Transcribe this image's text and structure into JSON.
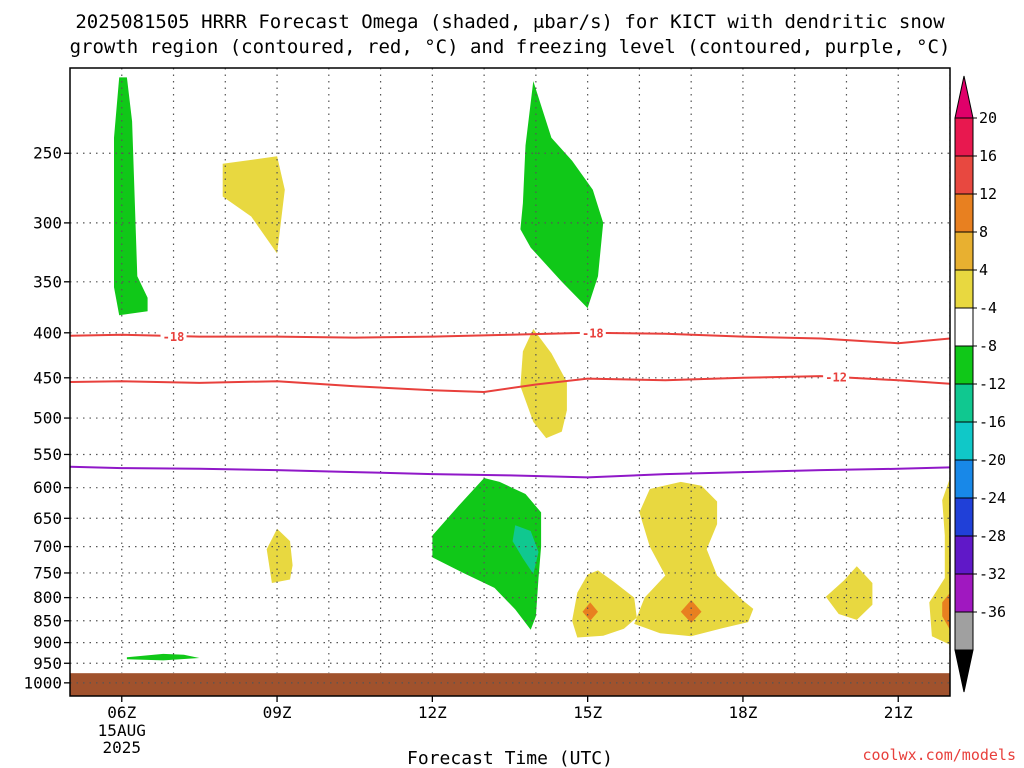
{
  "title_line1": "2025081505 HRRR Forecast Omega (shaded, μbar/s) for KICT with dendritic snow",
  "title_line2": "growth region (contoured, red, °C) and freezing level (contoured, purple, °C)",
  "credit": "coolwx.com/models",
  "chart_data": {
    "type": "contour",
    "title": "2025081505 HRRR Forecast Omega (shaded, μbar/s) for KICT with dendritic snow growth region (contoured, red, °C) and freezing level (contoured, purple, °C)",
    "xlabel": "Forecast Time (UTC)",
    "ylabel": "",
    "x_ticks": [
      {
        "label": "06Z",
        "sub": [
          "15AUG",
          "2025"
        ],
        "hour": 6
      },
      {
        "label": "09Z",
        "hour": 9
      },
      {
        "label": "12Z",
        "hour": 12
      },
      {
        "label": "15Z",
        "hour": 15
      },
      {
        "label": "18Z",
        "hour": 18
      },
      {
        "label": "21Z",
        "hour": 21
      }
    ],
    "xlim": [
      5.0,
      22.0
    ],
    "y_ticks": [
      250,
      300,
      350,
      400,
      450,
      500,
      550,
      600,
      650,
      700,
      750,
      800,
      850,
      900,
      950,
      1000
    ],
    "ylim": [
      200,
      1035
    ],
    "y_scale": "log (pressure, hPa, reversed)",
    "grid": true,
    "colorbar": {
      "labels": [
        "20",
        "16",
        "12",
        "8",
        "4",
        "-4",
        "-8",
        "-12",
        "-16",
        "-20",
        "-24",
        "-28",
        "-32",
        "-36"
      ],
      "colors": [
        "#e8184f",
        "#e84840",
        "#e88020",
        "#e8b030",
        "#e8d840",
        "#ffffff",
        "#10c818",
        "#10c890",
        "#10c8c8",
        "#1888e8",
        "#2040d8",
        "#6018c8",
        "#a018c0",
        "#a0a0a0"
      ],
      "top_arrow": "#e0006a",
      "bottom_arrow": "#000000"
    },
    "contours": [
      {
        "name": "-18",
        "color": "#e8403c",
        "points": [
          [
            5.0,
            403
          ],
          [
            6.0,
            402
          ],
          [
            7.5,
            404
          ],
          [
            9.0,
            404
          ],
          [
            10.5,
            405
          ],
          [
            12.0,
            404
          ],
          [
            13.5,
            402
          ],
          [
            15.0,
            400
          ],
          [
            16.5,
            401
          ],
          [
            18.0,
            404
          ],
          [
            19.5,
            406
          ],
          [
            21.0,
            411
          ],
          [
            22.0,
            406
          ]
        ],
        "label_at": [
          [
            7.0,
            404
          ],
          [
            15.1,
            400
          ]
        ]
      },
      {
        "name": "-12",
        "color": "#e8403c",
        "points": [
          [
            5.0,
            455
          ],
          [
            6.0,
            454
          ],
          [
            7.5,
            456
          ],
          [
            9.0,
            454
          ],
          [
            10.5,
            460
          ],
          [
            12.0,
            465
          ],
          [
            13.0,
            467
          ],
          [
            14.0,
            458
          ],
          [
            15.0,
            451
          ],
          [
            16.5,
            453
          ],
          [
            18.0,
            450
          ],
          [
            19.5,
            448
          ],
          [
            21.0,
            453
          ],
          [
            22.0,
            457
          ]
        ],
        "label_at": [
          [
            19.8,
            449
          ]
        ]
      },
      {
        "name": "0",
        "color": "#9018c8",
        "points": [
          [
            5.0,
            568
          ],
          [
            6.0,
            570
          ],
          [
            7.5,
            571
          ],
          [
            9.0,
            573
          ],
          [
            10.5,
            576
          ],
          [
            12.0,
            579
          ],
          [
            13.5,
            581
          ],
          [
            15.0,
            584
          ],
          [
            16.5,
            579
          ],
          [
            18.0,
            576
          ],
          [
            19.5,
            573
          ],
          [
            21.0,
            571
          ],
          [
            22.0,
            569
          ]
        ]
      }
    ],
    "omega_regions": [
      {
        "color": "#10c818",
        "value_range": "-8 to -4",
        "points": [
          [
            5.95,
            205
          ],
          [
            6.1,
            205
          ],
          [
            6.2,
            230
          ],
          [
            6.3,
            345
          ],
          [
            6.5,
            365
          ],
          [
            6.5,
            378
          ],
          [
            5.95,
            382
          ],
          [
            5.85,
            355
          ],
          [
            5.85,
            240
          ]
        ]
      },
      {
        "color": "#e8d840",
        "value_range": "4 to 8",
        "points": [
          [
            7.95,
            257
          ],
          [
            9.0,
            252
          ],
          [
            9.15,
            275
          ],
          [
            9.0,
            325
          ],
          [
            8.5,
            295
          ],
          [
            7.95,
            280
          ]
        ]
      },
      {
        "color": "#10c818",
        "value_range": "-8 to -4",
        "points": [
          [
            13.95,
            207
          ],
          [
            14.3,
            240
          ],
          [
            14.7,
            255
          ],
          [
            15.1,
            275
          ],
          [
            15.3,
            300
          ],
          [
            15.2,
            345
          ],
          [
            15.0,
            375
          ],
          [
            14.5,
            350
          ],
          [
            13.9,
            320
          ],
          [
            13.7,
            305
          ],
          [
            13.75,
            285
          ],
          [
            13.8,
            245
          ]
        ]
      },
      {
        "color": "#e8d840",
        "value_range": "4 to 8",
        "points": [
          [
            13.95,
            396
          ],
          [
            14.3,
            422
          ],
          [
            14.6,
            455
          ],
          [
            14.6,
            490
          ],
          [
            14.5,
            518
          ],
          [
            14.2,
            527
          ],
          [
            13.95,
            505
          ],
          [
            13.7,
            460
          ],
          [
            13.75,
            420
          ]
        ]
      },
      {
        "color": "#10c818",
        "value_range": "-8 to -4",
        "points": [
          [
            13.0,
            585
          ],
          [
            13.3,
            591
          ],
          [
            13.8,
            610
          ],
          [
            14.1,
            640
          ],
          [
            14.1,
            700
          ],
          [
            14.05,
            760
          ],
          [
            14.0,
            840
          ],
          [
            13.9,
            870
          ],
          [
            13.6,
            825
          ],
          [
            13.2,
            780
          ],
          [
            12.6,
            750
          ],
          [
            12.0,
            720
          ],
          [
            12.0,
            680
          ],
          [
            12.5,
            630
          ]
        ]
      },
      {
        "color": "#10c890",
        "value_range": "-12 to -8",
        "points": [
          [
            13.6,
            662
          ],
          [
            13.9,
            672
          ],
          [
            14.05,
            710
          ],
          [
            13.95,
            752
          ],
          [
            13.75,
            722
          ],
          [
            13.55,
            690
          ]
        ]
      },
      {
        "color": "#e8d840",
        "value_range": "4 to 8",
        "points": [
          [
            9.0,
            668
          ],
          [
            9.25,
            690
          ],
          [
            9.3,
            735
          ],
          [
            9.25,
            763
          ],
          [
            8.9,
            770
          ],
          [
            8.8,
            705
          ]
        ]
      },
      {
        "color": "#e8d840",
        "value_range": "4 to 8",
        "points": [
          [
            15.2,
            745
          ],
          [
            15.5,
            767
          ],
          [
            15.9,
            800
          ],
          [
            15.95,
            843
          ],
          [
            15.7,
            868
          ],
          [
            15.3,
            884
          ],
          [
            14.8,
            888
          ],
          [
            14.7,
            850
          ],
          [
            14.8,
            790
          ],
          [
            15.0,
            753
          ]
        ]
      },
      {
        "color": "#e8d840",
        "value_range": "4 to 8",
        "points": [
          [
            16.2,
            602
          ],
          [
            16.8,
            591
          ],
          [
            17.2,
            597
          ],
          [
            17.5,
            622
          ],
          [
            17.5,
            660
          ],
          [
            17.3,
            705
          ],
          [
            17.5,
            755
          ],
          [
            18.0,
            806
          ],
          [
            18.2,
            824
          ],
          [
            18.1,
            853
          ],
          [
            17.6,
            867
          ],
          [
            17.0,
            885
          ],
          [
            16.4,
            878
          ],
          [
            15.9,
            857
          ],
          [
            16.1,
            800
          ],
          [
            16.5,
            755
          ],
          [
            16.2,
            700
          ],
          [
            16.0,
            640
          ]
        ]
      },
      {
        "color": "#e88020",
        "value_range": "8 to 12",
        "points": [
          [
            15.05,
            810
          ],
          [
            15.2,
            830
          ],
          [
            15.05,
            850
          ],
          [
            14.9,
            830
          ]
        ]
      },
      {
        "color": "#e88020",
        "value_range": "8 to 12",
        "points": [
          [
            17.0,
            805
          ],
          [
            17.2,
            830
          ],
          [
            17.0,
            855
          ],
          [
            16.8,
            830
          ]
        ]
      },
      {
        "color": "#e8d840",
        "value_range": "4 to 8",
        "points": [
          [
            20.2,
            737
          ],
          [
            20.5,
            770
          ],
          [
            20.5,
            815
          ],
          [
            20.2,
            848
          ],
          [
            19.85,
            835
          ],
          [
            19.6,
            798
          ],
          [
            19.95,
            765
          ]
        ]
      },
      {
        "color": "#e8d840",
        "value_range": "4 to 8",
        "points": [
          [
            22.0,
            585
          ],
          [
            22.0,
            905
          ],
          [
            21.65,
            885
          ],
          [
            21.6,
            810
          ],
          [
            21.9,
            760
          ],
          [
            21.9,
            680
          ],
          [
            21.85,
            620
          ]
        ]
      },
      {
        "color": "#e88020",
        "value_range": "8 to 12",
        "points": [
          [
            22.0,
            790
          ],
          [
            22.0,
            870
          ],
          [
            21.85,
            840
          ],
          [
            21.85,
            810
          ]
        ]
      },
      {
        "color": "#10c818",
        "value_range": "-8 to -4",
        "points": [
          [
            6.1,
            935
          ],
          [
            6.8,
            927
          ],
          [
            7.2,
            929
          ],
          [
            7.5,
            937
          ],
          [
            6.8,
            943
          ],
          [
            6.1,
            940
          ]
        ]
      }
    ],
    "ground_below_hPa": 975,
    "ground_color": "#a0522d"
  }
}
